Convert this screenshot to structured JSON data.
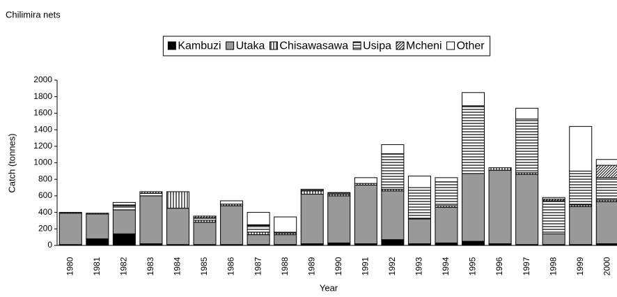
{
  "chart_data": {
    "type": "stacked_bar",
    "title": "Chilimira nets",
    "x_label": "Year",
    "y_label": "Catch (tonnes)",
    "categories": [
      "1980",
      "1981",
      "1982",
      "1983",
      "1984",
      "1985",
      "1986",
      "1987",
      "1988",
      "1989",
      "1990",
      "1991",
      "1992",
      "1993",
      "1994",
      "1995",
      "1996",
      "1997",
      "1998",
      "1999",
      "2000"
    ],
    "series": [
      {
        "name": "Kambuzi",
        "color": "#000000",
        "pattern": "solid",
        "values": [
          10,
          80,
          140,
          20,
          10,
          10,
          10,
          10,
          10,
          20,
          30,
          20,
          70,
          20,
          30,
          50,
          20,
          10,
          10,
          10,
          20
        ]
      },
      {
        "name": "Utaka",
        "color": "#999999",
        "pattern": "solid",
        "values": [
          380,
          300,
          290,
          580,
          440,
          270,
          470,
          120,
          120,
          600,
          570,
          710,
          590,
          300,
          430,
          820,
          890,
          850,
          130,
          460,
          510
        ]
      },
      {
        "name": "Chisawasawa",
        "color": "#ffffff",
        "pattern": "vertical",
        "values": [
          10,
          10,
          0,
          0,
          200,
          25,
          20,
          30,
          20,
          40,
          20,
          20,
          20,
          0,
          20,
          0,
          30,
          20,
          0,
          20,
          20
        ]
      },
      {
        "name": "Usipa",
        "color": "#ffffff",
        "pattern": "horizontal",
        "values": [
          0,
          0,
          50,
          30,
          0,
          30,
          0,
          80,
          10,
          20,
          20,
          0,
          430,
          380,
          290,
          820,
          0,
          650,
          400,
          410,
          270
        ]
      },
      {
        "name": "Mcheni",
        "color": "#ffffff",
        "pattern": "diagonal",
        "values": [
          0,
          0,
          10,
          20,
          0,
          20,
          0,
          10,
          0,
          0,
          0,
          0,
          0,
          0,
          0,
          0,
          0,
          0,
          20,
          0,
          150
        ]
      },
      {
        "name": "Other",
        "color": "#ffffff",
        "pattern": "solid",
        "values": [
          0,
          0,
          30,
          0,
          0,
          0,
          40,
          150,
          185,
          0,
          0,
          70,
          110,
          140,
          50,
          160,
          0,
          130,
          20,
          540,
          70
        ]
      }
    ],
    "ylim": [
      0,
      2000
    ],
    "yticks": [
      0,
      200,
      400,
      600,
      800,
      1000,
      1200,
      1400,
      1600,
      1800,
      2000
    ],
    "grid": false,
    "legend": "top"
  }
}
